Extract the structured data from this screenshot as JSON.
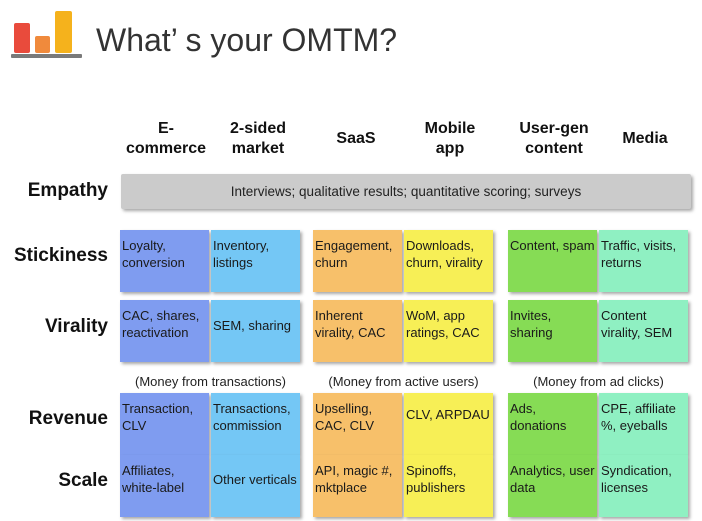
{
  "title": "What’ s your OMTM?",
  "columns": [
    "E-\ncommerce",
    "2-sided\nmarket",
    "SaaS",
    "Mobile\napp",
    "User-gen\ncontent",
    "Media"
  ],
  "rows": {
    "empathy": "Empathy",
    "stickiness": "Stickiness",
    "virality": "Virality",
    "revenue": "Revenue",
    "scale": "Scale"
  },
  "empathy_text": "Interviews; qualitative results; quantitative scoring; surveys",
  "stickiness": [
    "Loyalty, conversion",
    "Inventory, listings",
    "Engagement, churn",
    "Downloads, churn, virality",
    "Content, spam",
    "Traffic, visits, returns"
  ],
  "virality": [
    "CAC, shares, reactivation",
    "SEM, sharing",
    "Inherent virality, CAC",
    "WoM, app ratings, CAC",
    "Invites, sharing",
    "Content virality, SEM"
  ],
  "money": [
    "(Money from transactions)",
    "(Money from active users)",
    "(Money from ad clicks)"
  ],
  "revenue": [
    "Transaction, CLV",
    "Transactions, commission",
    "Upselling, CAC, CLV",
    "CLV, ARPDAU",
    "Ads, donations",
    "CPE, affiliate %, eyeballs"
  ],
  "scale": [
    "Affiliates, white-label",
    "Other verticals",
    "API, magic #, mktplace",
    "Spinoffs, publishers",
    "Analytics, user data",
    "Syndication, licenses"
  ]
}
